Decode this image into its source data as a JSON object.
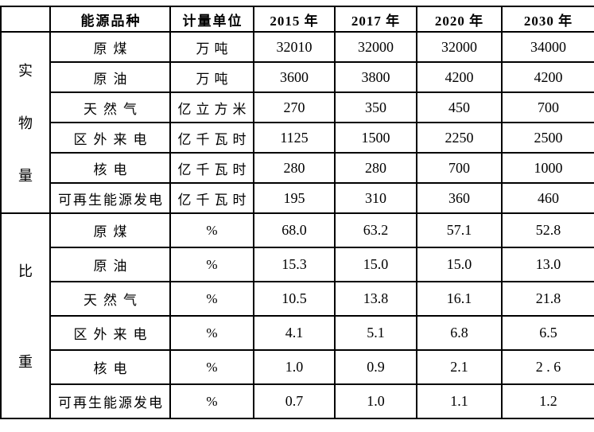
{
  "table": {
    "header": {
      "corner": "",
      "energy_type": "能源品种",
      "unit": "计量单位",
      "years": [
        "2015 年",
        "2017 年",
        "2020 年",
        "2030 年"
      ]
    },
    "sections": [
      {
        "group_label": "实物量",
        "rows": [
          {
            "name": "原煤",
            "unit": "万吨",
            "values": [
              "32010",
              "32000",
              "32000",
              "34000"
            ]
          },
          {
            "name": "原油",
            "unit": "万吨",
            "values": [
              "3600",
              "3800",
              "4200",
              "4200"
            ]
          },
          {
            "name": "天然气",
            "unit": "亿立方米",
            "values": [
              "270",
              "350",
              "450",
              "700"
            ]
          },
          {
            "name": "区外来电",
            "unit": "亿千瓦时",
            "values": [
              "1125",
              "1500",
              "2250",
              "2500"
            ]
          },
          {
            "name": "核电",
            "unit": "亿千瓦时",
            "values": [
              "280",
              "280",
              "700",
              "1000"
            ]
          },
          {
            "name": "可再生能源发电",
            "unit": "亿千瓦时",
            "values": [
              "195",
              "310",
              "360",
              "460"
            ]
          }
        ]
      },
      {
        "group_label": "比重",
        "rows": [
          {
            "name": "原煤",
            "unit": "%",
            "values": [
              "68.0",
              "63.2",
              "57.1",
              "52.8"
            ]
          },
          {
            "name": "原油",
            "unit": "%",
            "values": [
              "15.3",
              "15.0",
              "15.0",
              "13.0"
            ]
          },
          {
            "name": "天然气",
            "unit": "%",
            "values": [
              "10.5",
              "13.8",
              "16.1",
              "21.8"
            ]
          },
          {
            "name": "区外来电",
            "unit": "%",
            "values": [
              "4.1",
              "5.1",
              "6.8",
              "6.5"
            ]
          },
          {
            "name": "核电",
            "unit": "%",
            "values": [
              "1.0",
              "0.9",
              "2.1",
              "2 . 6"
            ]
          },
          {
            "name": "可再生能源发电",
            "unit": "%",
            "values": [
              "0.7",
              "1.0",
              "1.1",
              "1.2"
            ]
          }
        ]
      }
    ]
  },
  "colors": {
    "border": "#000000",
    "text": "#000000",
    "background": "#ffffff"
  }
}
